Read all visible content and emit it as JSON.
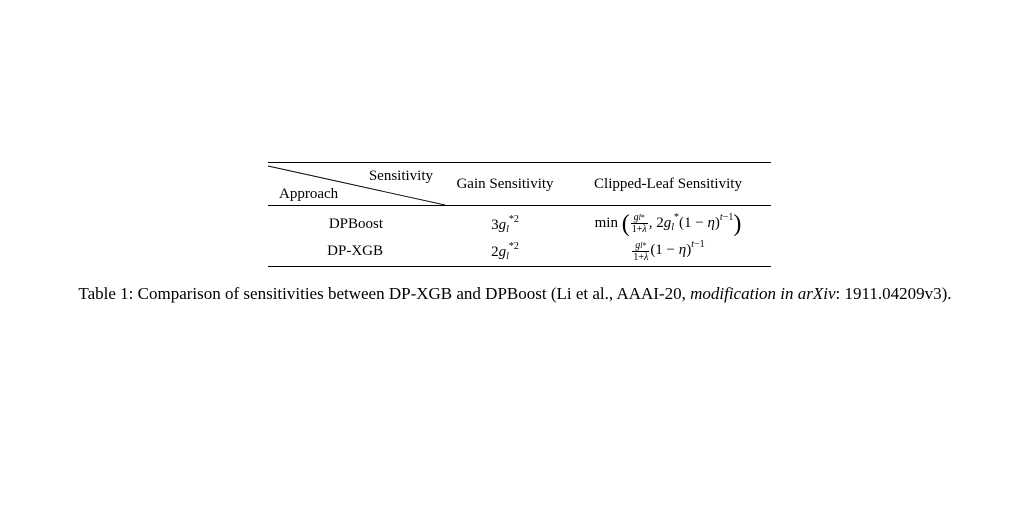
{
  "table": {
    "header": {
      "diag_top": "Sensitivity",
      "diag_bottom": "Approach",
      "gain": "Gain Sensitivity",
      "clipped": "Clipped-Leaf Sensitivity"
    },
    "rows": [
      {
        "approach": "DPBoost",
        "gain": "3g_l^{*2}",
        "clipped": "min( g_l^*/(1+λ), 2g_l^*(1−η)^{t−1} )"
      },
      {
        "approach": "DP-XGB",
        "gain": "2g_l^{*2}",
        "clipped": "g_l^*/(1+λ) (1−η)^{t−1}"
      }
    ]
  },
  "caption": {
    "prefix": "Table 1: Comparison of sensitivities between DP-XGB and DPBoost (Li et al., AAAI-20, ",
    "italic": "modification in arXiv",
    "suffix": ": 1911.04209v3)."
  }
}
